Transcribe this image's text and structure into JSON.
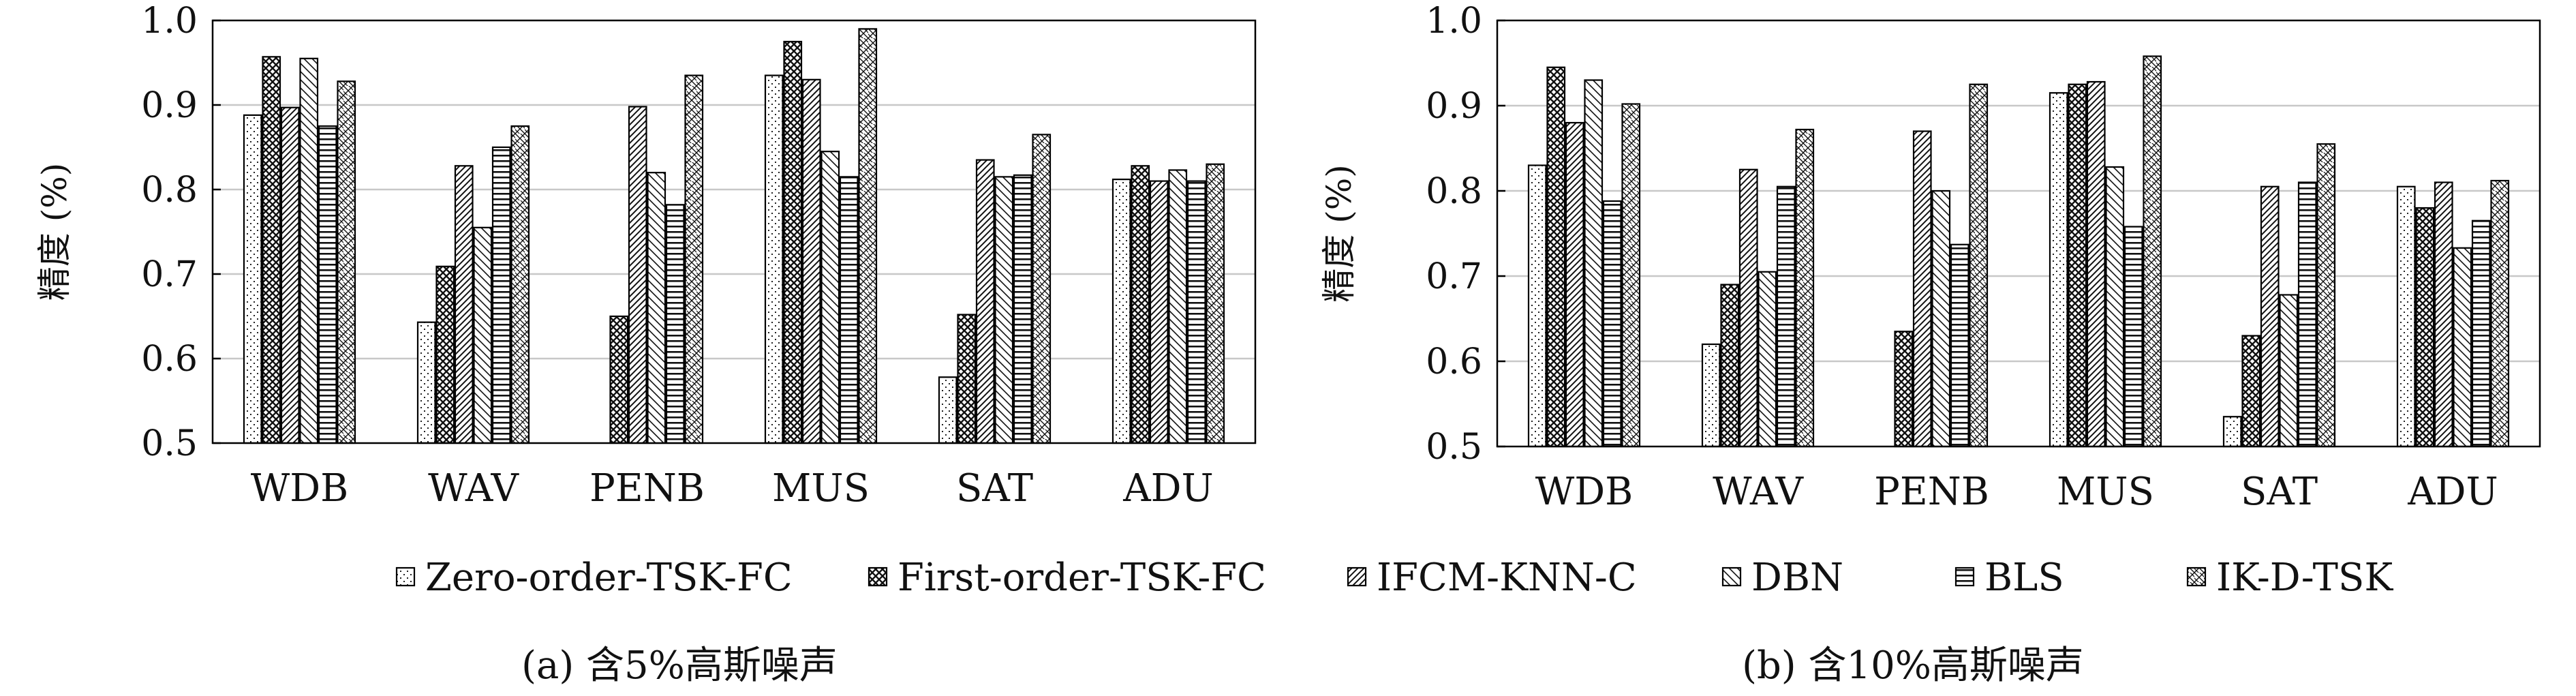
{
  "legend": [
    "Zero-order-TSK-FC",
    "First-order-TSK-FC",
    "IFCM-KNN-C",
    "DBN",
    "BLS",
    "IK-D-TSK"
  ],
  "chart_data": [
    {
      "type": "bar",
      "caption": "(a) 含5%高斯噪声",
      "ylabel": "精度 (%)",
      "ylim": [
        0.5,
        1.0
      ],
      "yticks": [
        "0.5",
        "0.6",
        "0.7",
        "0.8",
        "0.9",
        "1.0"
      ],
      "grid": true,
      "categories": [
        "WDB",
        "WAV",
        "PENB",
        "MUS",
        "SAT",
        "ADU"
      ],
      "series": [
        {
          "name": "Zero-order-TSK-FC",
          "values": [
            0.888,
            0.643,
            0.5,
            0.935,
            0.578,
            0.812
          ]
        },
        {
          "name": "First-order-TSK-FC",
          "values": [
            0.957,
            0.709,
            0.65,
            0.975,
            0.652,
            0.828
          ]
        },
        {
          "name": "IFCM-KNN-C",
          "values": [
            0.897,
            0.828,
            0.898,
            0.93,
            0.835,
            0.81
          ]
        },
        {
          "name": "DBN",
          "values": [
            0.955,
            0.755,
            0.82,
            0.845,
            0.815,
            0.823
          ]
        },
        {
          "name": "BLS",
          "values": [
            0.875,
            0.85,
            0.782,
            0.815,
            0.817,
            0.81
          ]
        },
        {
          "name": "IK-D-TSK",
          "values": [
            0.928,
            0.875,
            0.935,
            0.99,
            0.865,
            0.83
          ]
        }
      ]
    },
    {
      "type": "bar",
      "caption": "(b) 含10%高斯噪声",
      "ylabel": "精度 (%)",
      "ylim": [
        0.5,
        1.0
      ],
      "yticks": [
        "0.5",
        "0.6",
        "0.7",
        "0.8",
        "0.9",
        "1.0"
      ],
      "grid": true,
      "categories": [
        "WDB",
        "WAV",
        "PENB",
        "MUS",
        "SAT",
        "ADU"
      ],
      "series": [
        {
          "name": "Zero-order-TSK-FC",
          "values": [
            0.83,
            0.62,
            0.5,
            0.915,
            0.535,
            0.805
          ]
        },
        {
          "name": "First-order-TSK-FC",
          "values": [
            0.945,
            0.69,
            0.635,
            0.925,
            0.63,
            0.78
          ]
        },
        {
          "name": "IFCM-KNN-C",
          "values": [
            0.88,
            0.825,
            0.87,
            0.928,
            0.805,
            0.81
          ]
        },
        {
          "name": "DBN",
          "values": [
            0.93,
            0.705,
            0.8,
            0.828,
            0.678,
            0.733
          ]
        },
        {
          "name": "BLS",
          "values": [
            0.788,
            0.805,
            0.737,
            0.758,
            0.81,
            0.765
          ]
        },
        {
          "name": "IK-D-TSK",
          "values": [
            0.902,
            0.872,
            0.925,
            0.958,
            0.855,
            0.812
          ]
        }
      ]
    }
  ]
}
